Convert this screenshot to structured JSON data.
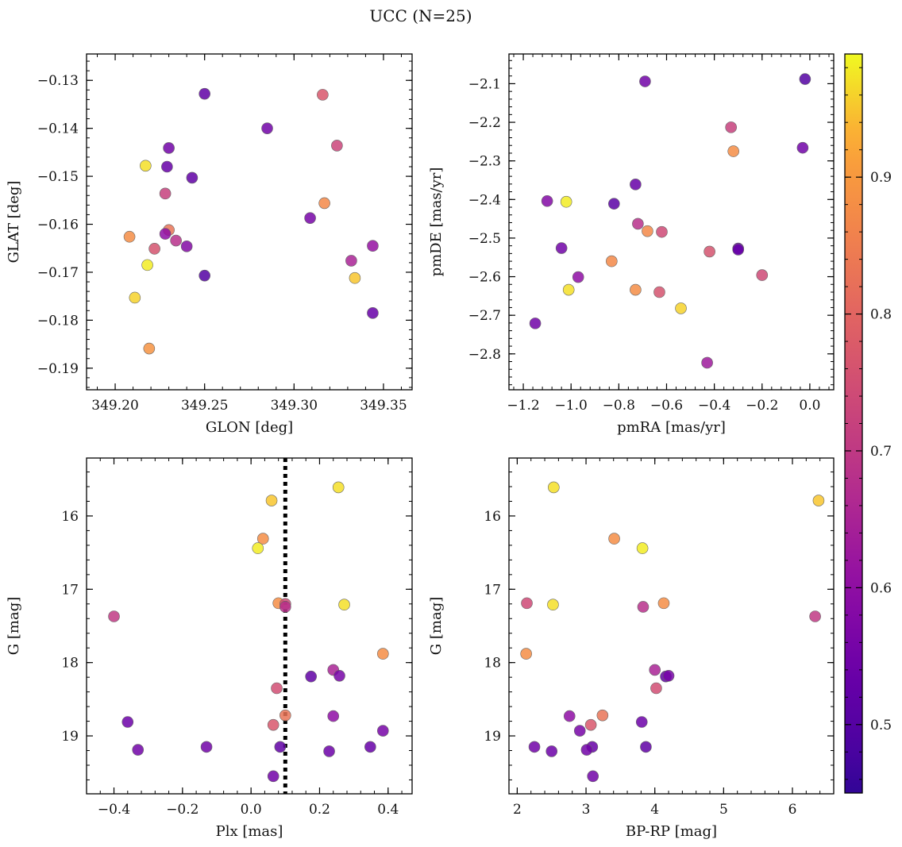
{
  "figure": {
    "title": "UCC (N=25)"
  },
  "colorbar": {
    "range": [
      0.45,
      0.99
    ],
    "ticks": [
      {
        "value": 0.5,
        "label": "0.5"
      },
      {
        "value": 0.6,
        "label": "0.6"
      },
      {
        "value": 0.7,
        "label": "0.7"
      },
      {
        "value": 0.8,
        "label": "0.8"
      },
      {
        "value": 0.9,
        "label": "0.9"
      }
    ],
    "colormap": "plasma"
  },
  "chart_data": [
    {
      "type": "scatter",
      "xlabel": "GLON [deg]",
      "ylabel": "GLAT [deg]",
      "xlim": [
        349.184,
        349.366
      ],
      "ylim": [
        -0.1945,
        -0.1245
      ],
      "xticks": [
        {
          "v": 349.2,
          "label": "349.20"
        },
        {
          "v": 349.25,
          "label": "349.25"
        },
        {
          "v": 349.3,
          "label": "349.30"
        },
        {
          "v": 349.35,
          "label": "349.35"
        }
      ],
      "yticks": [
        {
          "v": -0.13,
          "label": "−0.13"
        },
        {
          "v": -0.14,
          "label": "−0.14"
        },
        {
          "v": -0.15,
          "label": "−0.15"
        },
        {
          "v": -0.16,
          "label": "−0.16"
        },
        {
          "v": -0.17,
          "label": "−0.17"
        },
        {
          "v": -0.18,
          "label": "−0.18"
        },
        {
          "v": -0.19,
          "label": "−0.19"
        }
      ],
      "points": [
        {
          "x": 349.25,
          "y": -0.1328,
          "c": 0.52
        },
        {
          "x": 349.316,
          "y": -0.133,
          "c": 0.77
        },
        {
          "x": 349.285,
          "y": -0.14,
          "c": 0.55
        },
        {
          "x": 349.324,
          "y": -0.1436,
          "c": 0.73
        },
        {
          "x": 349.23,
          "y": -0.1441,
          "c": 0.55
        },
        {
          "x": 349.217,
          "y": -0.1478,
          "c": 0.97
        },
        {
          "x": 349.229,
          "y": -0.148,
          "c": 0.53
        },
        {
          "x": 349.243,
          "y": -0.1503,
          "c": 0.52
        },
        {
          "x": 349.228,
          "y": -0.1536,
          "c": 0.72
        },
        {
          "x": 349.317,
          "y": -0.1556,
          "c": 0.87
        },
        {
          "x": 349.309,
          "y": -0.1587,
          "c": 0.56
        },
        {
          "x": 349.23,
          "y": -0.1612,
          "c": 0.83
        },
        {
          "x": 349.228,
          "y": -0.162,
          "c": 0.6
        },
        {
          "x": 349.208,
          "y": -0.1626,
          "c": 0.88
        },
        {
          "x": 349.234,
          "y": -0.1634,
          "c": 0.68
        },
        {
          "x": 349.24,
          "y": -0.1646,
          "c": 0.58
        },
        {
          "x": 349.344,
          "y": -0.1645,
          "c": 0.61
        },
        {
          "x": 349.222,
          "y": -0.1651,
          "c": 0.76
        },
        {
          "x": 349.332,
          "y": -0.1676,
          "c": 0.65
        },
        {
          "x": 349.218,
          "y": -0.1685,
          "c": 0.98
        },
        {
          "x": 349.25,
          "y": -0.1707,
          "c": 0.5
        },
        {
          "x": 349.334,
          "y": -0.1712,
          "c": 0.95
        },
        {
          "x": 349.211,
          "y": -0.1753,
          "c": 0.96
        },
        {
          "x": 349.344,
          "y": -0.1785,
          "c": 0.53
        },
        {
          "x": 349.219,
          "y": -0.1859,
          "c": 0.89
        }
      ]
    },
    {
      "type": "scatter",
      "xlabel": "pmRA [mas/yr]",
      "ylabel": "pmDE [mas/yr]",
      "xlim": [
        -1.26,
        0.1
      ],
      "ylim": [
        -2.893,
        -2.023
      ],
      "xticks": [
        {
          "v": -1.2,
          "label": "−1.2"
        },
        {
          "v": -1.0,
          "label": "−1.0"
        },
        {
          "v": -0.8,
          "label": "−0.8"
        },
        {
          "v": -0.6,
          "label": "−0.6"
        },
        {
          "v": -0.4,
          "label": "−0.4"
        },
        {
          "v": -0.2,
          "label": "−0.2"
        },
        {
          "v": 0.0,
          "label": "0.0"
        }
      ],
      "yticks": [
        {
          "v": -2.1,
          "label": "−2.1"
        },
        {
          "v": -2.2,
          "label": "−2.2"
        },
        {
          "v": -2.3,
          "label": "−2.3"
        },
        {
          "v": -2.4,
          "label": "−2.4"
        },
        {
          "v": -2.5,
          "label": "−2.5"
        },
        {
          "v": -2.6,
          "label": "−2.6"
        },
        {
          "v": -2.7,
          "label": "−2.7"
        },
        {
          "v": -2.8,
          "label": "−2.8"
        }
      ],
      "points": [
        {
          "x": -0.69,
          "y": -2.094,
          "c": 0.55
        },
        {
          "x": -0.02,
          "y": -2.088,
          "c": 0.5
        },
        {
          "x": -0.33,
          "y": -2.213,
          "c": 0.72
        },
        {
          "x": -0.03,
          "y": -2.266,
          "c": 0.55
        },
        {
          "x": -0.32,
          "y": -2.275,
          "c": 0.88
        },
        {
          "x": -0.73,
          "y": -2.361,
          "c": 0.53
        },
        {
          "x": -1.1,
          "y": -2.404,
          "c": 0.58
        },
        {
          "x": -1.02,
          "y": -2.406,
          "c": 0.98
        },
        {
          "x": -0.82,
          "y": -2.411,
          "c": 0.51
        },
        {
          "x": -0.72,
          "y": -2.463,
          "c": 0.68
        },
        {
          "x": -0.68,
          "y": -2.482,
          "c": 0.87
        },
        {
          "x": -0.62,
          "y": -2.484,
          "c": 0.74
        },
        {
          "x": -1.04,
          "y": -2.526,
          "c": 0.55
        },
        {
          "x": -0.3,
          "y": -2.527,
          "c": 0.52
        },
        {
          "x": -0.3,
          "y": -2.53,
          "c": 0.53
        },
        {
          "x": -0.42,
          "y": -2.535,
          "c": 0.76
        },
        {
          "x": -0.83,
          "y": -2.56,
          "c": 0.87
        },
        {
          "x": -0.2,
          "y": -2.596,
          "c": 0.74
        },
        {
          "x": -0.97,
          "y": -2.601,
          "c": 0.6
        },
        {
          "x": -1.01,
          "y": -2.634,
          "c": 0.97
        },
        {
          "x": -0.73,
          "y": -2.634,
          "c": 0.88
        },
        {
          "x": -0.63,
          "y": -2.64,
          "c": 0.76
        },
        {
          "x": -0.54,
          "y": -2.682,
          "c": 0.96
        },
        {
          "x": -1.15,
          "y": -2.721,
          "c": 0.55
        },
        {
          "x": -0.43,
          "y": -2.823,
          "c": 0.63
        }
      ]
    },
    {
      "type": "scatter",
      "xlabel": "Plx [mas]",
      "ylabel": "G [mag]",
      "xlim": [
        -0.48,
        0.47
      ],
      "ylim": [
        19.79,
        15.21
      ],
      "reference_line": {
        "x": 0.1,
        "style": "dotted"
      },
      "xticks": [
        {
          "v": -0.4,
          "label": "−0.4"
        },
        {
          "v": -0.2,
          "label": "−0.2"
        },
        {
          "v": 0.0,
          "label": "0.0"
        },
        {
          "v": 0.2,
          "label": "0.2"
        },
        {
          "v": 0.4,
          "label": "0.4"
        }
      ],
      "yticks": [
        {
          "v": 16,
          "label": "16"
        },
        {
          "v": 17,
          "label": "17"
        },
        {
          "v": 18,
          "label": "18"
        },
        {
          "v": 19,
          "label": "19"
        }
      ],
      "points": [
        {
          "x": 0.255,
          "y": 15.61,
          "c": 0.97
        },
        {
          "x": 0.06,
          "y": 15.79,
          "c": 0.95
        },
        {
          "x": 0.035,
          "y": 16.31,
          "c": 0.88
        },
        {
          "x": 0.02,
          "y": 16.44,
          "c": 0.98
        },
        {
          "x": 0.08,
          "y": 17.19,
          "c": 0.88
        },
        {
          "x": 0.1,
          "y": 17.2,
          "c": 0.74
        },
        {
          "x": 0.1,
          "y": 17.24,
          "c": 0.68
        },
        {
          "x": 0.272,
          "y": 17.21,
          "c": 0.97
        },
        {
          "x": -0.4,
          "y": 17.37,
          "c": 0.7
        },
        {
          "x": 0.385,
          "y": 17.88,
          "c": 0.88
        },
        {
          "x": 0.24,
          "y": 18.1,
          "c": 0.65
        },
        {
          "x": 0.175,
          "y": 18.19,
          "c": 0.52
        },
        {
          "x": 0.258,
          "y": 18.18,
          "c": 0.56
        },
        {
          "x": 0.075,
          "y": 18.35,
          "c": 0.75
        },
        {
          "x": 0.1,
          "y": 18.72,
          "c": 0.83
        },
        {
          "x": 0.24,
          "y": 18.73,
          "c": 0.6
        },
        {
          "x": -0.36,
          "y": 18.81,
          "c": 0.54
        },
        {
          "x": 0.065,
          "y": 18.85,
          "c": 0.77
        },
        {
          "x": 0.385,
          "y": 18.93,
          "c": 0.56
        },
        {
          "x": -0.13,
          "y": 19.15,
          "c": 0.55
        },
        {
          "x": 0.085,
          "y": 19.15,
          "c": 0.52
        },
        {
          "x": 0.348,
          "y": 19.15,
          "c": 0.53
        },
        {
          "x": -0.33,
          "y": 19.19,
          "c": 0.55
        },
        {
          "x": 0.228,
          "y": 19.21,
          "c": 0.54
        },
        {
          "x": 0.065,
          "y": 19.55,
          "c": 0.55
        }
      ]
    },
    {
      "type": "scatter",
      "xlabel": "BP-RP [mag]",
      "ylabel": "G [mag]",
      "xlim": [
        1.88,
        6.6
      ],
      "ylim": [
        19.79,
        15.21
      ],
      "xticks": [
        {
          "v": 2,
          "label": "2"
        },
        {
          "v": 3,
          "label": "3"
        },
        {
          "v": 4,
          "label": "4"
        },
        {
          "v": 5,
          "label": "5"
        },
        {
          "v": 6,
          "label": "6"
        }
      ],
      "yticks": [
        {
          "v": 16,
          "label": "16"
        },
        {
          "v": 17,
          "label": "17"
        },
        {
          "v": 18,
          "label": "18"
        },
        {
          "v": 19,
          "label": "19"
        }
      ],
      "points": [
        {
          "x": 2.53,
          "y": 15.61,
          "c": 0.97
        },
        {
          "x": 6.38,
          "y": 15.79,
          "c": 0.95
        },
        {
          "x": 3.41,
          "y": 16.31,
          "c": 0.88
        },
        {
          "x": 3.82,
          "y": 16.44,
          "c": 0.98
        },
        {
          "x": 2.14,
          "y": 17.19,
          "c": 0.74
        },
        {
          "x": 4.13,
          "y": 17.19,
          "c": 0.88
        },
        {
          "x": 2.52,
          "y": 17.21,
          "c": 0.97
        },
        {
          "x": 3.83,
          "y": 17.24,
          "c": 0.68
        },
        {
          "x": 6.33,
          "y": 17.37,
          "c": 0.7
        },
        {
          "x": 2.13,
          "y": 17.88,
          "c": 0.88
        },
        {
          "x": 4.0,
          "y": 18.1,
          "c": 0.65
        },
        {
          "x": 4.16,
          "y": 18.19,
          "c": 0.52
        },
        {
          "x": 4.2,
          "y": 18.18,
          "c": 0.56
        },
        {
          "x": 4.02,
          "y": 18.35,
          "c": 0.75
        },
        {
          "x": 3.24,
          "y": 18.72,
          "c": 0.83
        },
        {
          "x": 2.76,
          "y": 18.73,
          "c": 0.6
        },
        {
          "x": 3.81,
          "y": 18.81,
          "c": 0.54
        },
        {
          "x": 3.07,
          "y": 18.85,
          "c": 0.77
        },
        {
          "x": 2.91,
          "y": 18.93,
          "c": 0.56
        },
        {
          "x": 2.25,
          "y": 19.15,
          "c": 0.55
        },
        {
          "x": 3.87,
          "y": 19.15,
          "c": 0.52
        },
        {
          "x": 3.09,
          "y": 19.15,
          "c": 0.53
        },
        {
          "x": 3.01,
          "y": 19.19,
          "c": 0.55
        },
        {
          "x": 2.5,
          "y": 19.21,
          "c": 0.54
        },
        {
          "x": 3.1,
          "y": 19.55,
          "c": 0.55
        }
      ]
    }
  ]
}
